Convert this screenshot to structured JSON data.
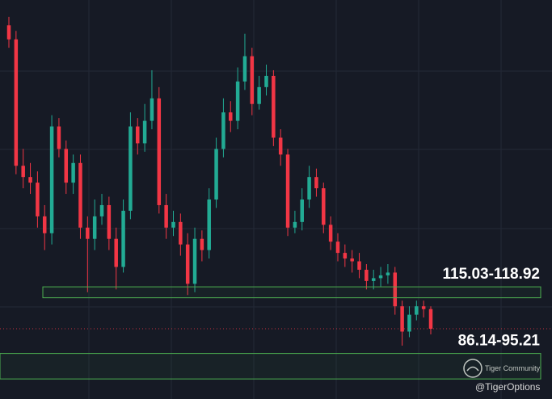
{
  "chart_data": {
    "type": "candlestick",
    "up_color": "#22ab94",
    "down_color": "#f23645",
    "zone_color": "#4caf50",
    "ylim": [
      79,
      221
    ],
    "open": [
      212,
      207,
      162,
      158,
      156,
      144,
      138,
      176,
      168,
      156,
      163,
      140,
      136,
      144,
      148,
      136,
      126,
      146,
      176,
      170,
      178,
      186,
      148,
      140,
      142,
      134,
      120,
      136,
      132,
      150,
      168,
      181,
      178,
      192,
      201,
      184,
      190,
      194,
      172,
      166,
      140,
      142,
      150,
      158,
      154,
      141,
      135,
      131,
      129,
      128,
      125,
      121,
      122,
      123,
      124,
      112,
      103,
      109,
      112,
      111
    ],
    "high": [
      215,
      210,
      168,
      163,
      160,
      148,
      180,
      179,
      171,
      166,
      166,
      144,
      150,
      152,
      151,
      140,
      150,
      181,
      179,
      184,
      196,
      190,
      152,
      146,
      145,
      138,
      140,
      139,
      154,
      172,
      186,
      185,
      197,
      209,
      204,
      194,
      198,
      196,
      175,
      168,
      146,
      154,
      162,
      161,
      156,
      144,
      138,
      134,
      132,
      131,
      127,
      125,
      126,
      127,
      126,
      114,
      112,
      114,
      114,
      112
    ],
    "low": [
      204,
      159,
      154,
      152,
      140,
      132,
      134,
      165,
      152,
      152,
      136,
      117,
      132,
      141,
      132,
      118,
      124,
      143,
      166,
      167,
      175,
      145,
      136,
      137,
      130,
      116,
      117,
      128,
      129,
      147,
      165,
      174,
      175,
      189,
      180,
      182,
      187,
      169,
      162,
      137,
      138,
      139,
      147,
      151,
      138,
      132,
      128,
      126,
      124,
      122,
      118,
      118,
      119,
      120,
      109,
      98,
      101,
      107,
      108,
      102
    ],
    "close": [
      207,
      162,
      158,
      156,
      144,
      138,
      176,
      168,
      156,
      163,
      140,
      136,
      144,
      148,
      136,
      126,
      146,
      176,
      170,
      178,
      186,
      148,
      140,
      142,
      134,
      120,
      136,
      132,
      150,
      168,
      181,
      178,
      192,
      201,
      184,
      190,
      194,
      172,
      166,
      140,
      142,
      150,
      158,
      154,
      141,
      135,
      131,
      129,
      128,
      125,
      121,
      122,
      123,
      124,
      112,
      103,
      109,
      112,
      111,
      104
    ],
    "zones": [
      {
        "label": "115.03-118.92",
        "low": 115.03,
        "high": 118.92
      },
      {
        "label": "86.14-95.21",
        "low": 86.14,
        "high": 95.21
      }
    ]
  },
  "watermark": {
    "brand": "Tiger Community",
    "handle": "@TigerOptions"
  }
}
